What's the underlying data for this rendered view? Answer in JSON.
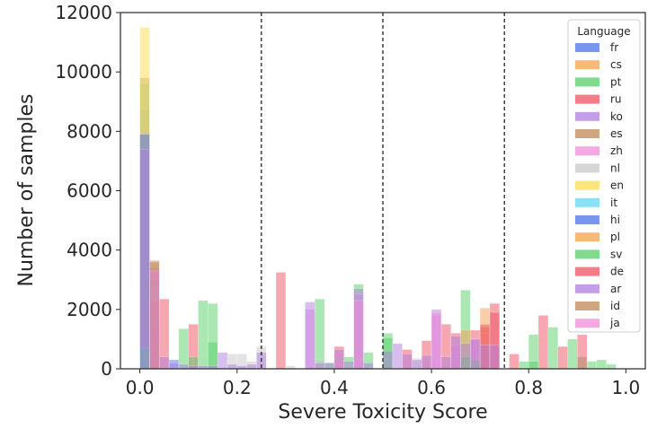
{
  "chart_data": {
    "type": "bar",
    "subtype": "overlaid-histogram",
    "xlabel": "Severe Toxicity Score",
    "ylabel": "Number of samples",
    "xlim": [
      -0.04,
      1.04
    ],
    "ylim": [
      0,
      12000
    ],
    "xticks": [
      "0.0",
      "0.2",
      "0.4",
      "0.6",
      "0.8",
      "1.0"
    ],
    "yticks": [
      "0",
      "2000",
      "4000",
      "6000",
      "8000",
      "10000",
      "12000"
    ],
    "bin_width": 0.02,
    "vlines": [
      0.25,
      0.5,
      0.75
    ],
    "legend": {
      "title": "Language",
      "placement": "top-right"
    },
    "bar_alpha": 0.5,
    "series": [
      {
        "name": "fr",
        "color": "#4c72e8",
        "bins": [
          [
            0.0,
            8700
          ],
          [
            0.02,
            1500
          ]
        ]
      },
      {
        "name": "cs",
        "color": "#f5a050",
        "bins": [
          [
            0.0,
            9800
          ],
          [
            0.02,
            3400
          ]
        ]
      },
      {
        "name": "pt",
        "color": "#55d066",
        "bins": [
          [
            0.0,
            9600
          ],
          [
            0.02,
            3000
          ],
          [
            0.08,
            1350
          ],
          [
            0.12,
            2300
          ],
          [
            0.14,
            2200
          ],
          [
            0.36,
            2350
          ],
          [
            0.42,
            400
          ],
          [
            0.44,
            2850
          ],
          [
            0.46,
            550
          ],
          [
            0.5,
            1200
          ],
          [
            0.66,
            2650
          ],
          [
            0.78,
            250
          ],
          [
            0.8,
            1150
          ],
          [
            0.84,
            1400
          ],
          [
            0.88,
            1000
          ],
          [
            0.9,
            400
          ],
          [
            0.92,
            250
          ],
          [
            0.94,
            300
          ],
          [
            0.96,
            150
          ]
        ]
      },
      {
        "name": "ru",
        "color": "#ee5060",
        "bins": [
          [
            0.02,
            3000
          ],
          [
            0.04,
            2350
          ],
          [
            0.1,
            1500
          ],
          [
            0.28,
            3250
          ],
          [
            0.4,
            750
          ],
          [
            0.54,
            650
          ],
          [
            0.58,
            950
          ],
          [
            0.62,
            1500
          ],
          [
            0.64,
            1200
          ],
          [
            0.68,
            1300
          ],
          [
            0.7,
            1400
          ],
          [
            0.72,
            2200
          ],
          [
            0.76,
            500
          ],
          [
            0.82,
            1800
          ],
          [
            0.86,
            750
          ],
          [
            0.9,
            1150
          ]
        ]
      },
      {
        "name": "ko",
        "color": "#b07ee0",
        "bins": [
          [
            0.0,
            8000
          ]
        ]
      },
      {
        "name": "es",
        "color": "#c08855",
        "bins": [
          [
            0.0,
            3000
          ],
          [
            0.02,
            3650
          ]
        ]
      },
      {
        "name": "zh",
        "color": "#f08cd8",
        "bins": [
          [
            0.02,
            1400
          ],
          [
            0.34,
            2000
          ],
          [
            0.44,
            2500
          ],
          [
            0.6,
            1800
          ],
          [
            0.64,
            800
          ],
          [
            0.68,
            1000
          ],
          [
            0.7,
            1200
          ]
        ]
      },
      {
        "name": "nl",
        "color": "#c8c8c8",
        "bins": [
          [
            0.0,
            9800
          ],
          [
            0.02,
            2800
          ],
          [
            0.18,
            500
          ],
          [
            0.2,
            500
          ],
          [
            0.22,
            250
          ],
          [
            0.24,
            750
          ],
          [
            0.3,
            100
          ],
          [
            0.36,
            300
          ],
          [
            0.5,
            300
          ],
          [
            0.56,
            350
          ]
        ]
      },
      {
        "name": "en",
        "color": "#fadc50",
        "bins": [
          [
            0.0,
            11500
          ]
        ]
      },
      {
        "name": "it",
        "color": "#60d8f0",
        "bins": [
          [
            0.0,
            750
          ]
        ]
      },
      {
        "name": "hi",
        "color": "#4c72e8",
        "bins": [
          [
            0.0,
            7900
          ],
          [
            0.02,
            1500
          ],
          [
            0.06,
            300
          ]
        ]
      },
      {
        "name": "pl",
        "color": "#f5a050",
        "bins": [
          [
            0.02,
            200
          ],
          [
            0.66,
            1300
          ],
          [
            0.7,
            2050
          ]
        ]
      },
      {
        "name": "sv",
        "color": "#55d066",
        "bins": [
          [
            0.0,
            700
          ],
          [
            0.02,
            3000
          ],
          [
            0.1,
            400
          ],
          [
            0.14,
            900
          ],
          [
            0.38,
            200
          ],
          [
            0.5,
            1050
          ],
          [
            0.66,
            400
          ],
          [
            0.68,
            300
          ],
          [
            0.8,
            250
          ]
        ]
      },
      {
        "name": "de",
        "color": "#ee5060",
        "bins": [
          [
            0.02,
            2300
          ],
          [
            0.7,
            1500
          ],
          [
            0.72,
            1900
          ]
        ]
      },
      {
        "name": "ar",
        "color": "#b07ee0",
        "bins": [
          [
            0.0,
            7400
          ],
          [
            0.02,
            3350
          ],
          [
            0.04,
            400
          ],
          [
            0.06,
            200
          ],
          [
            0.08,
            150
          ],
          [
            0.1,
            100
          ],
          [
            0.12,
            100
          ],
          [
            0.14,
            100
          ],
          [
            0.16,
            550
          ],
          [
            0.18,
            150
          ],
          [
            0.2,
            100
          ],
          [
            0.22,
            150
          ],
          [
            0.24,
            550
          ],
          [
            0.34,
            2250
          ],
          [
            0.36,
            200
          ],
          [
            0.38,
            200
          ],
          [
            0.4,
            650
          ],
          [
            0.42,
            250
          ],
          [
            0.44,
            2700
          ],
          [
            0.46,
            200
          ],
          [
            0.5,
            600
          ],
          [
            0.52,
            850
          ],
          [
            0.54,
            500
          ],
          [
            0.56,
            300
          ],
          [
            0.58,
            450
          ],
          [
            0.6,
            2000
          ],
          [
            0.62,
            400
          ],
          [
            0.64,
            1100
          ],
          [
            0.66,
            850
          ],
          [
            0.68,
            1000
          ],
          [
            0.7,
            800
          ],
          [
            0.72,
            800
          ]
        ]
      },
      {
        "name": "id",
        "color": "#c08855",
        "bins": [
          [
            0.02,
            3600
          ]
        ]
      },
      {
        "name": "ja",
        "color": "#f08cd8",
        "bins": [
          [
            0.02,
            3300
          ],
          [
            0.44,
            2300
          ],
          [
            0.6,
            1900
          ]
        ]
      }
    ]
  }
}
